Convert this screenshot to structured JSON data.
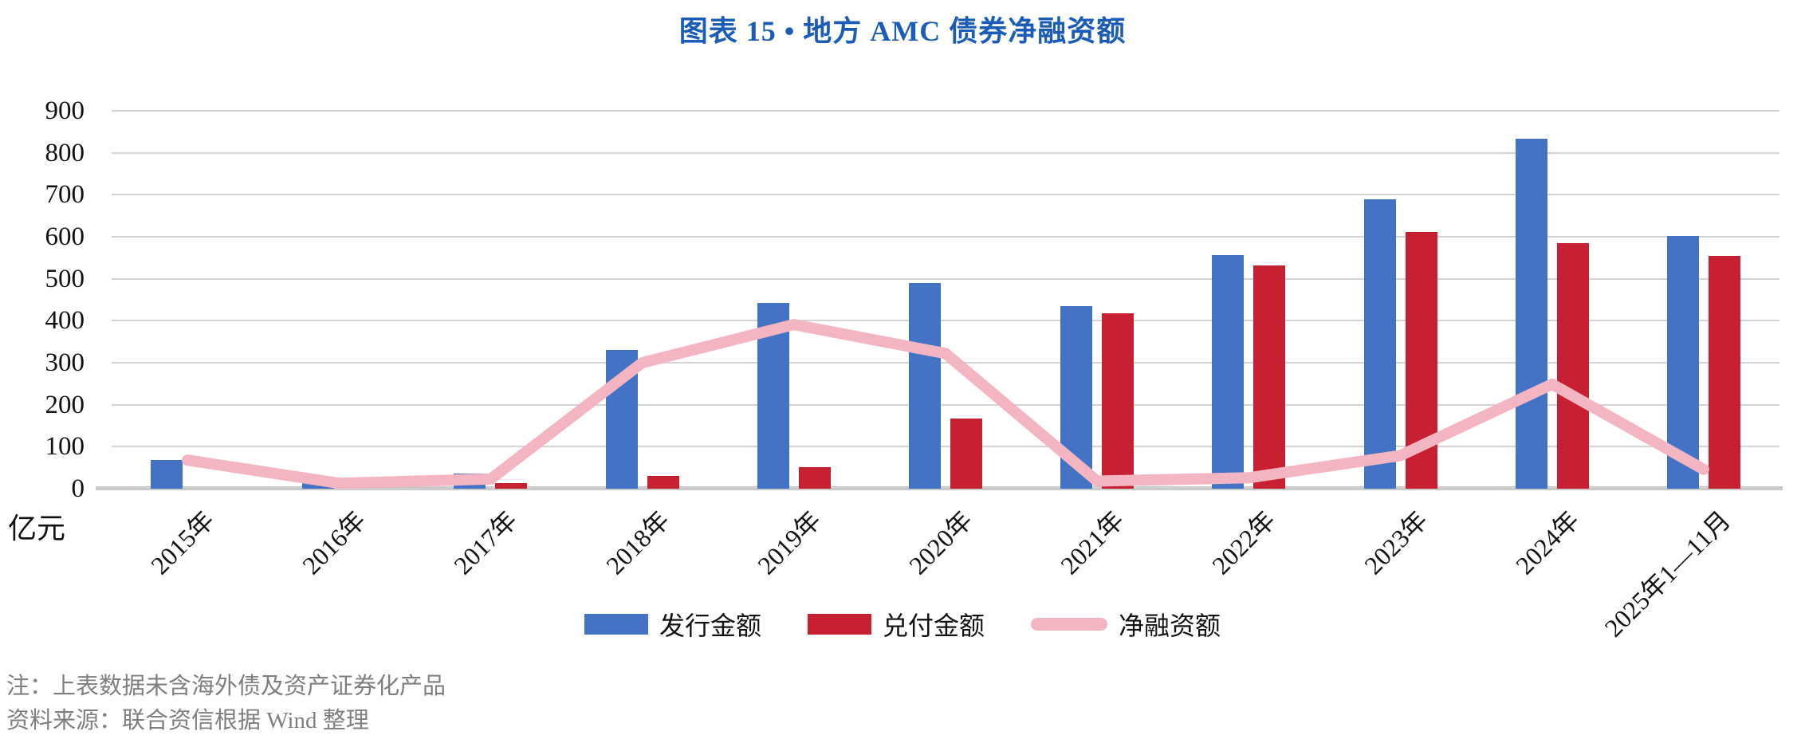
{
  "title": "图表 15 • 地方 AMC 债券净融资额",
  "colors": {
    "title": "#1B5CB8",
    "issuance_bar": "#4472C4",
    "redemption_bar": "#C72032",
    "net_line": "#F4B5C2",
    "gridline": "#D4D4D4",
    "axis_line": "#CBCBCB",
    "tick_text": "#111111",
    "note_text": "#7F7F7F"
  },
  "y_axis": {
    "unit_label": "亿元",
    "min": 0,
    "max": 900,
    "tick_step": 100
  },
  "notes": [
    "注：上表数据未含海外债及资产证券化产品",
    "资料来源：联合资信根据 Wind 整理"
  ],
  "chart_data": {
    "type": "bar",
    "title": "图表 15 • 地方 AMC 债券净融资额",
    "unit": "亿元",
    "categories": [
      "2015年",
      "2016年",
      "2017年",
      "2018年",
      "2019年",
      "2020年",
      "2021年",
      "2022年",
      "2023年",
      "2024年",
      "2025年1—11月"
    ],
    "series": [
      {
        "name": "发行金额",
        "type": "bar",
        "color": "#4472C4",
        "values": [
          68,
          13,
          37,
          330,
          443,
          490,
          435,
          557,
          690,
          833,
          601
        ]
      },
      {
        "name": "兑付金额",
        "type": "bar",
        "color": "#C72032",
        "values": [
          0,
          0,
          14,
          30,
          52,
          168,
          417,
          531,
          611,
          584,
          555
        ]
      },
      {
        "name": "净融资额",
        "type": "line",
        "color": "#F4B5C2",
        "values": [
          68,
          13,
          23,
          300,
          391,
          322,
          18,
          26,
          79,
          249,
          46
        ]
      }
    ],
    "ylim": [
      0,
      900
    ],
    "ytick_step": 100,
    "grid": true,
    "legend_position": "bottom"
  }
}
